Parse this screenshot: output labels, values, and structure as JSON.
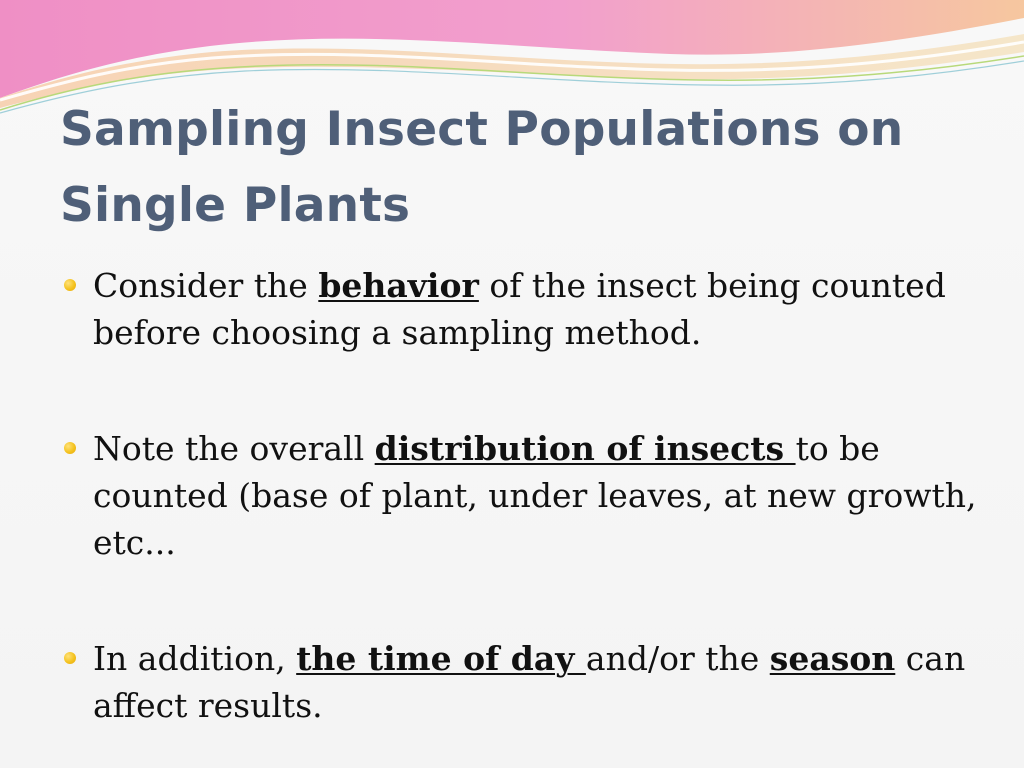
{
  "slide": {
    "title": "Sampling Insect Populations on Single Plants",
    "accent_colors": {
      "title": "#4f5f78",
      "bullet": "#f4c21e",
      "wave_pink": "#ee8ec3",
      "wave_peach": "#f7c7a1",
      "wave_green": "#b8d97a"
    },
    "bullets": [
      {
        "icon": "bullet-dot-icon",
        "parts": [
          {
            "text": "Consider the "
          },
          {
            "text": "behavior"
          },
          {
            "text": " of the insect being counted before choosing a sampling method."
          }
        ]
      },
      {
        "icon": "bullet-dot-icon",
        "parts": [
          {
            "text": "Note the overall "
          },
          {
            "text": "distribution of insects "
          },
          {
            "text": "to be counted (base of plant, under leaves, at new growth, etc..."
          }
        ]
      },
      {
        "icon": "bullet-dot-icon",
        "parts": [
          {
            "text": "In addition, "
          },
          {
            "text": "the time of day "
          },
          {
            "text": "and/or the "
          },
          {
            "text": "season"
          },
          {
            "text": " can affect results."
          }
        ]
      }
    ]
  }
}
